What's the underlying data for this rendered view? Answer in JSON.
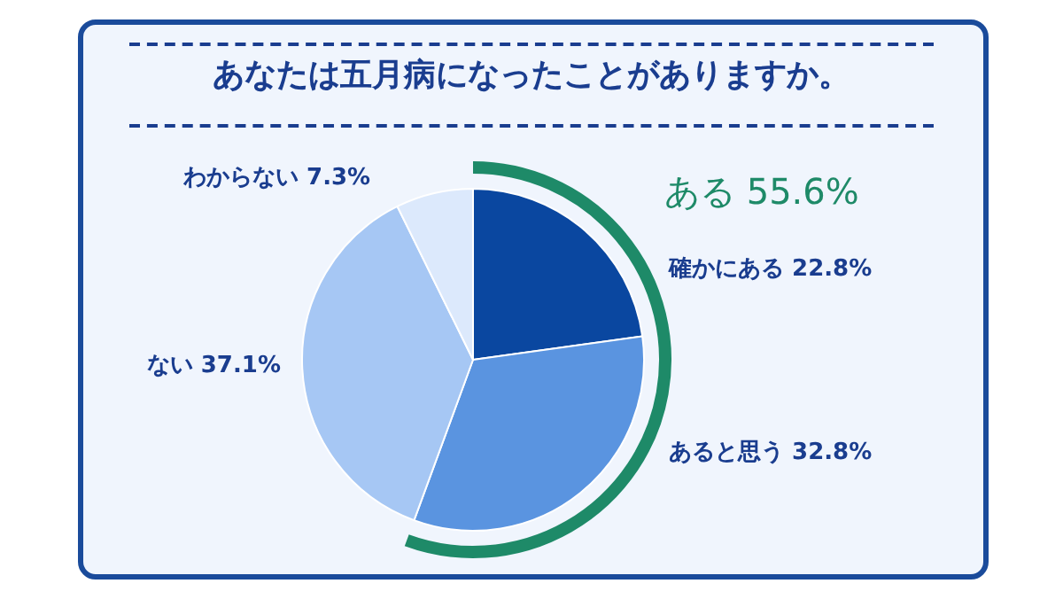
{
  "chart_data": {
    "type": "pie",
    "title": "あなたは五月病になったことがありますか。",
    "categories": [
      "確かにある",
      "あると思う",
      "ない",
      "わからない"
    ],
    "values": [
      22.8,
      32.8,
      37.1,
      7.3
    ],
    "value_labels": [
      "22.8%",
      "32.8%",
      "37.1%",
      "7.3%"
    ],
    "colors": [
      "#0a47a0",
      "#5a94e0",
      "#a6c7f4",
      "#dce9fc"
    ],
    "annotations": [
      "ある 55.6%"
    ],
    "legend": false
  }
}
